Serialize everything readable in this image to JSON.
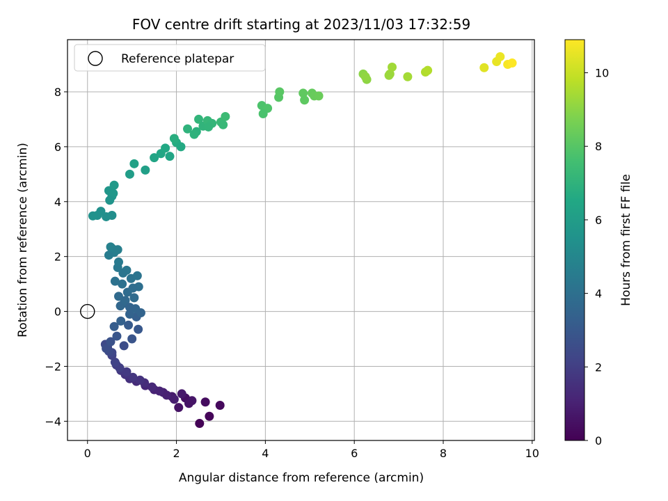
{
  "chart_data": {
    "type": "scatter",
    "title": "FOV centre drift starting at 2023/11/03 17:32:59",
    "xlabel": "Angular distance from reference (arcmin)",
    "ylabel": "Rotation from reference (arcmin)",
    "xlim": [
      -0.45,
      10.05
    ],
    "ylim": [
      -4.7,
      9.9
    ],
    "xticks": [
      0,
      2,
      4,
      6,
      8,
      10
    ],
    "xtick_labels": [
      "0",
      "2",
      "4",
      "6",
      "8",
      "10"
    ],
    "yticks": [
      -4,
      -2,
      0,
      2,
      4,
      6,
      8
    ],
    "ytick_labels": [
      "−4",
      "−2",
      "0",
      "2",
      "4",
      "6",
      "8"
    ],
    "grid": true,
    "legend": {
      "placement": "top-left",
      "entries": [
        "Reference platepar"
      ]
    },
    "colorbar": {
      "label": "Hours from first FF file",
      "colormap": "viridis",
      "range": [
        0,
        10.9
      ],
      "ticks": [
        0,
        2,
        4,
        6,
        8,
        10
      ],
      "tick_labels": [
        "0",
        "2",
        "4",
        "6",
        "8",
        "10"
      ]
    },
    "series": [
      {
        "name": "Reference platepar",
        "marker": "open-circle",
        "x": [
          0
        ],
        "y": [
          0
        ]
      },
      {
        "name": "",
        "marker": "filled-circle",
        "color_by": "hours",
        "x": [
          2.52,
          2.74,
          2.98,
          2.65,
          2.2,
          2.05,
          2.35,
          1.9,
          1.7,
          1.5,
          1.3,
          1.1,
          0.95,
          0.85,
          0.75,
          0.65,
          0.55,
          0.45,
          0.4,
          2.12,
          2.28,
          1.95,
          1.78,
          1.62,
          1.45,
          1.28,
          1.18,
          1.02,
          0.88,
          0.72,
          0.62,
          0.55,
          0.48,
          0.42,
          0.52,
          0.66,
          0.82,
          1.0,
          0.92,
          1.1,
          1.14,
          0.6,
          0.75,
          0.95,
          1.08,
          1.2,
          0.82,
          0.7,
          0.9,
          1.05,
          1.15,
          0.78,
          0.98,
          0.68,
          1.12,
          0.88,
          1.02,
          0.74,
          0.85,
          0.62,
          0.95,
          0.7,
          0.8,
          0.6,
          0.55,
          0.48,
          0.52,
          0.68,
          0.55,
          0.42,
          0.3,
          0.22,
          0.12,
          0.48,
          0.55,
          0.58,
          0.5,
          0.6,
          0.95,
          1.3,
          1.05,
          1.5,
          1.65,
          1.75,
          1.85,
          2.0,
          2.1,
          1.95,
          2.25,
          2.45,
          2.6,
          2.5,
          2.7,
          2.8,
          3.0,
          3.1,
          3.05,
          2.4,
          2.72,
          3.92,
          4.05,
          3.95,
          4.3,
          4.32,
          4.85,
          4.88,
          5.05,
          5.1,
          5.2,
          6.2,
          6.28,
          6.25,
          6.8,
          6.85,
          7.2,
          6.78,
          7.6,
          7.65,
          8.92,
          9.2,
          9.28,
          9.45,
          9.55
        ],
        "y": [
          -4.08,
          -3.82,
          -3.42,
          -3.3,
          -3.15,
          -3.5,
          -3.25,
          -3.1,
          -2.95,
          -2.85,
          -2.7,
          -2.55,
          -2.45,
          -2.3,
          -2.15,
          -1.95,
          -1.6,
          -1.3,
          -1.2,
          -3.0,
          -3.35,
          -3.2,
          -3.05,
          -2.9,
          -2.75,
          -2.6,
          -2.5,
          -2.4,
          -2.2,
          -2.05,
          -1.85,
          -1.5,
          -1.45,
          -1.35,
          -1.1,
          -0.9,
          -1.25,
          -1.0,
          -0.5,
          -0.2,
          -0.65,
          -0.55,
          -0.35,
          -0.1,
          0.1,
          -0.05,
          0.3,
          0.55,
          0.7,
          0.5,
          0.9,
          1.0,
          1.2,
          1.6,
          1.3,
          1.5,
          0.85,
          0.2,
          0.4,
          1.1,
          0.15,
          1.8,
          1.4,
          2.15,
          2.3,
          2.05,
          2.35,
          2.25,
          3.5,
          3.45,
          3.65,
          3.5,
          3.48,
          4.4,
          4.2,
          4.3,
          4.05,
          4.6,
          5.0,
          5.15,
          5.38,
          5.6,
          5.75,
          5.95,
          5.65,
          6.15,
          6.0,
          6.3,
          6.65,
          6.55,
          6.75,
          7.0,
          6.95,
          6.85,
          6.9,
          7.1,
          6.8,
          6.45,
          6.72,
          7.5,
          7.4,
          7.2,
          7.8,
          8.0,
          7.95,
          7.7,
          7.95,
          7.85,
          7.85,
          8.65,
          8.45,
          8.55,
          8.65,
          8.9,
          8.55,
          8.6,
          8.72,
          8.78,
          8.88,
          9.1,
          9.28,
          9.0,
          9.05
        ],
        "hours": [
          0.05,
          0.15,
          0.25,
          0.35,
          0.45,
          0.55,
          0.65,
          0.8,
          0.95,
          1.05,
          1.2,
          1.35,
          1.5,
          1.65,
          1.8,
          1.95,
          2.1,
          2.25,
          2.4,
          0.75,
          0.6,
          0.9,
          1.0,
          1.1,
          1.25,
          1.4,
          1.55,
          1.7,
          1.85,
          2.0,
          2.15,
          2.3,
          2.45,
          2.6,
          2.75,
          2.9,
          2.55,
          2.85,
          3.1,
          3.25,
          3.0,
          3.2,
          3.35,
          3.45,
          3.55,
          3.5,
          3.65,
          3.75,
          3.85,
          3.8,
          3.95,
          4.05,
          4.15,
          4.35,
          4.2,
          4.3,
          3.9,
          3.6,
          3.7,
          4.1,
          3.5,
          4.45,
          4.25,
          4.6,
          4.7,
          4.55,
          4.75,
          4.65,
          5.3,
          5.35,
          5.4,
          5.45,
          5.5,
          5.7,
          5.65,
          5.75,
          5.6,
          5.85,
          6.0,
          6.1,
          6.2,
          6.35,
          6.45,
          6.55,
          6.4,
          6.7,
          6.6,
          6.8,
          7.0,
          6.9,
          7.05,
          7.1,
          7.2,
          7.15,
          7.3,
          7.4,
          7.25,
          6.95,
          7.1,
          7.8,
          7.85,
          7.75,
          8.0,
          8.05,
          8.2,
          8.15,
          8.3,
          8.35,
          8.4,
          9.0,
          9.05,
          9.1,
          9.3,
          9.35,
          9.4,
          9.25,
          9.6,
          9.65,
          10.4,
          10.55,
          10.6,
          10.8,
          10.9
        ]
      }
    ]
  }
}
